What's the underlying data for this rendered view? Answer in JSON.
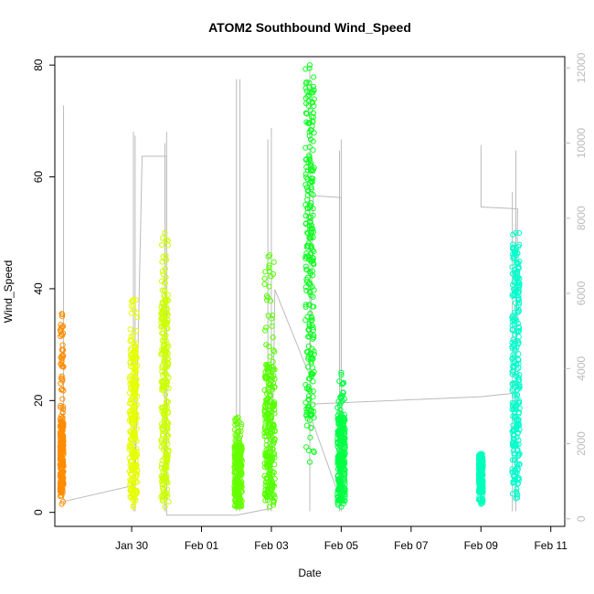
{
  "chart_data": {
    "type": "scatter",
    "title": "ATOM2 Southbound Wind_Speed",
    "xlabel": "Date",
    "ylabel": "Wind_Speed",
    "x_ticks": [
      "Jan 30",
      "Feb 01",
      "Feb 03",
      "Feb 05",
      "Feb 07",
      "Feb 09",
      "Feb 11"
    ],
    "x_range_days": [
      -2.2,
      12.4
    ],
    "y_left": {
      "ticks": [
        0,
        20,
        40,
        60,
        80
      ],
      "range": [
        -2.5,
        81.5
      ]
    },
    "y_right": {
      "ticks": [
        0,
        2000,
        4000,
        6000,
        8000,
        10000,
        12000
      ],
      "range": [
        -200,
        12300
      ],
      "color": "#bbbbbb"
    },
    "grid": false,
    "point_series": [
      {
        "x_center": -2.0,
        "width": 0.1,
        "min": 1.5,
        "max": 35.5,
        "dense_range": [
          3.5,
          17
        ],
        "color": "#ff8c00"
      },
      {
        "x_center": 0.05,
        "width": 0.22,
        "min": 1,
        "max": 38,
        "dense_range": [
          2,
          30
        ],
        "color": "#e6ff00"
      },
      {
        "x_center": 0.95,
        "width": 0.22,
        "min": 1,
        "max": 50,
        "dense_range": [
          2,
          40
        ],
        "color": "#ccff00"
      },
      {
        "x_center": 3.05,
        "width": 0.22,
        "min": 1,
        "max": 17,
        "dense_range": [
          1,
          12
        ],
        "color": "#66ff00"
      },
      {
        "x_center": 3.95,
        "width": 0.3,
        "min": 1,
        "max": 46,
        "dense_range": [
          2,
          27
        ],
        "color": "#55ff00"
      },
      {
        "x_center": 5.1,
        "width": 0.25,
        "min": 9,
        "max": 80,
        "dense_range": [
          15,
          78
        ],
        "color": "#11ff22"
      },
      {
        "x_center": 6.0,
        "width": 0.22,
        "min": 1,
        "max": 25,
        "dense_range": [
          2,
          17
        ],
        "color": "#00ff44"
      },
      {
        "x_center": 10.0,
        "width": 0.12,
        "min": 1.5,
        "max": 10.5,
        "dense_range": [
          3.5,
          10
        ],
        "color": "#00ffbb"
      },
      {
        "x_center": 11.0,
        "width": 0.22,
        "min": 2.5,
        "max": 50,
        "dense_range": [
          5,
          48
        ],
        "color": "#00ffcc"
      }
    ],
    "right_axis_line": {
      "color": "#bbbbbb",
      "points": [
        [
          -2.0,
          450
        ],
        [
          0.1,
          900
        ],
        [
          0.3,
          9650
        ],
        [
          1.0,
          9650
        ],
        [
          1.0,
          100
        ],
        [
          3.0,
          100
        ],
        [
          4.0,
          280
        ],
        [
          4.1,
          6100
        ],
        [
          5.1,
          3800
        ],
        [
          5.2,
          8600
        ],
        [
          6.0,
          8550
        ],
        [
          6.0,
          1000
        ],
        [
          5.9,
          700
        ],
        [
          5.0,
          3050
        ],
        [
          10.0,
          3250
        ],
        [
          11.0,
          3350
        ],
        [
          11.05,
          8250
        ],
        [
          10.0,
          8300
        ],
        [
          10.0,
          9950
        ]
      ],
      "spikes": [
        {
          "x": -1.95,
          "y_min": 500,
          "y_max": 11000
        },
        {
          "x": 0.05,
          "y_min": 200,
          "y_max": 10300
        },
        {
          "x": 0.1,
          "y_min": 200,
          "y_max": 10200
        },
        {
          "x": 0.95,
          "y_min": 200,
          "y_max": 10000
        },
        {
          "x": 1.0,
          "y_min": 200,
          "y_max": 10300
        },
        {
          "x": 3.0,
          "y_min": 200,
          "y_max": 11700
        },
        {
          "x": 3.1,
          "y_min": 200,
          "y_max": 11700
        },
        {
          "x": 3.9,
          "y_min": 200,
          "y_max": 10100
        },
        {
          "x": 4.0,
          "y_min": 200,
          "y_max": 10400
        },
        {
          "x": 5.1,
          "y_min": 200,
          "y_max": 12000
        },
        {
          "x": 5.95,
          "y_min": 200,
          "y_max": 9800
        },
        {
          "x": 6.0,
          "y_min": 200,
          "y_max": 10100
        },
        {
          "x": 10.9,
          "y_min": 200,
          "y_max": 8700
        },
        {
          "x": 11.0,
          "y_min": 200,
          "y_max": 9800
        }
      ]
    }
  }
}
